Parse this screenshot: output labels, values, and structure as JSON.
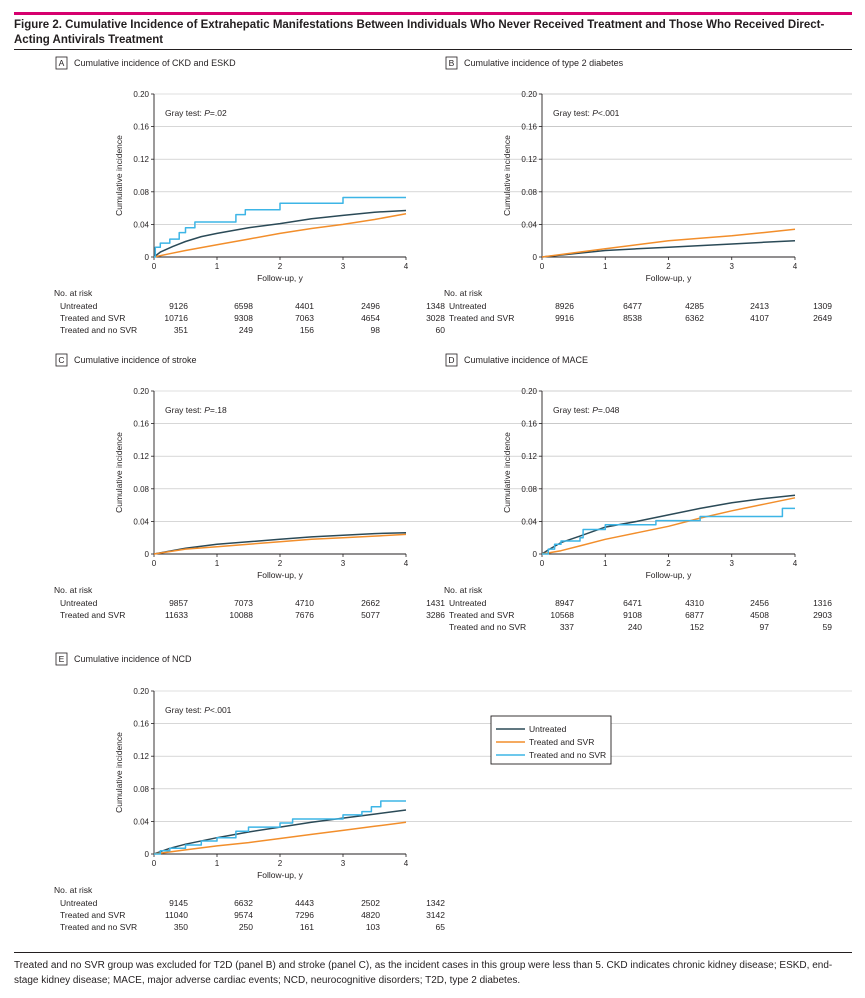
{
  "figure": {
    "title": "Figure 2. Cumulative Incidence of Extrahepatic Manifestations Between Individuals Who Never Received Treatment and Those Who Received Direct-Acting Antivirals Treatment",
    "footnote": "Treated and no SVR group was excluded for T2D (panel B) and stroke (panel C), as the incident cases in this group were less than 5. CKD indicates chronic kidney disease; ESKD, end-stage kidney disease; MACE, major adverse cardiac events; NCD, neurocognitive disorders; T2D, type 2 diabetes."
  },
  "colors": {
    "untreated": "#2b4a57",
    "treated_svr": "#f28e2b",
    "treated_no_svr": "#3db5e6",
    "grid": "#bfbfbf"
  },
  "legend": {
    "entries": [
      "Untreated",
      "Treated and SVR",
      "Treated and no SVR"
    ]
  },
  "chart_data": [
    {
      "type": "line",
      "letter": "A",
      "title": "Cumulative incidence of CKD and ESKD",
      "xlabel": "Follow-up, y",
      "ylabel": "Cumulative incidence",
      "xlim": [
        0,
        4
      ],
      "ylim": [
        0,
        0.2
      ],
      "x_ticks": [
        "0",
        "1",
        "2",
        "3",
        "4"
      ],
      "y_ticks": [
        "0",
        "0.04",
        "0.08",
        "0.12",
        "0.16",
        "0.20"
      ],
      "annotation_pre": "Gray test: ",
      "annotation_p": "P",
      "annotation_post": "=.02",
      "series": [
        {
          "name": "Untreated",
          "color_key": "untreated",
          "step": false,
          "points": [
            [
              0,
              0
            ],
            [
              0.1,
              0.006
            ],
            [
              0.3,
              0.013
            ],
            [
              0.5,
              0.019
            ],
            [
              0.75,
              0.025
            ],
            [
              1,
              0.029
            ],
            [
              1.5,
              0.036
            ],
            [
              2,
              0.041
            ],
            [
              2.5,
              0.047
            ],
            [
              3,
              0.051
            ],
            [
              3.5,
              0.055
            ],
            [
              4,
              0.057
            ]
          ]
        },
        {
          "name": "Treated and SVR",
          "color_key": "treated_svr",
          "step": false,
          "points": [
            [
              0,
              0
            ],
            [
              0.25,
              0.004
            ],
            [
              0.5,
              0.008
            ],
            [
              1,
              0.015
            ],
            [
              1.5,
              0.022
            ],
            [
              2,
              0.029
            ],
            [
              2.5,
              0.035
            ],
            [
              3,
              0.04
            ],
            [
              3.5,
              0.046
            ],
            [
              4,
              0.053
            ]
          ]
        },
        {
          "name": "Treated and no SVR",
          "color_key": "treated_no_svr",
          "step": true,
          "points": [
            [
              0,
              0
            ],
            [
              0.02,
              0.012
            ],
            [
              0.1,
              0.017
            ],
            [
              0.25,
              0.022
            ],
            [
              0.4,
              0.03
            ],
            [
              0.5,
              0.036
            ],
            [
              0.65,
              0.043
            ],
            [
              1.3,
              0.052
            ],
            [
              1.45,
              0.058
            ],
            [
              2,
              0.066
            ],
            [
              3,
              0.073
            ],
            [
              4,
              0.073
            ]
          ]
        }
      ],
      "risk_table": {
        "label": "No. at risk",
        "times": [
          "0",
          "1",
          "2",
          "3",
          "4"
        ],
        "rows": [
          {
            "group": "Untreated",
            "values": [
              "9126",
              "6598",
              "4401",
              "2496",
              "1348"
            ]
          },
          {
            "group": "Treated and SVR",
            "values": [
              "10716",
              "9308",
              "7063",
              "4654",
              "3028"
            ]
          },
          {
            "group": "Treated and no SVR",
            "values": [
              "351",
              "249",
              "156",
              "98",
              "60"
            ]
          }
        ]
      }
    },
    {
      "type": "line",
      "letter": "B",
      "title": "Cumulative incidence of type 2 diabetes",
      "xlabel": "Follow-up, y",
      "ylabel": "Cumulative incidence",
      "xlim": [
        0,
        4
      ],
      "ylim": [
        0,
        0.2
      ],
      "x_ticks": [
        "0",
        "1",
        "2",
        "3",
        "4"
      ],
      "y_ticks": [
        "0",
        "0.04",
        "0.08",
        "0.12",
        "0.16",
        "0.20"
      ],
      "annotation_pre": "Gray test: ",
      "annotation_p": "P",
      "annotation_post": "<.001",
      "series": [
        {
          "name": "Untreated",
          "color_key": "untreated",
          "step": false,
          "points": [
            [
              0,
              0
            ],
            [
              0.5,
              0.004
            ],
            [
              1,
              0.008
            ],
            [
              1.5,
              0.01
            ],
            [
              2,
              0.012
            ],
            [
              2.5,
              0.014
            ],
            [
              3,
              0.016
            ],
            [
              3.5,
              0.018
            ],
            [
              4,
              0.02
            ]
          ]
        },
        {
          "name": "Treated and SVR",
          "color_key": "treated_svr",
          "step": false,
          "points": [
            [
              0,
              0
            ],
            [
              0.5,
              0.005
            ],
            [
              1,
              0.01
            ],
            [
              1.5,
              0.015
            ],
            [
              2,
              0.02
            ],
            [
              2.5,
              0.023
            ],
            [
              3,
              0.026
            ],
            [
              3.5,
              0.03
            ],
            [
              4,
              0.034
            ]
          ]
        }
      ],
      "risk_table": {
        "label": "No. at risk",
        "times": [
          "0",
          "1",
          "2",
          "3",
          "4"
        ],
        "rows": [
          {
            "group": "Untreated",
            "values": [
              "8926",
              "6477",
              "4285",
              "2413",
              "1309"
            ]
          },
          {
            "group": "Treated and SVR",
            "values": [
              "9916",
              "8538",
              "6362",
              "4107",
              "2649"
            ]
          }
        ]
      }
    },
    {
      "type": "line",
      "letter": "C",
      "title": "Cumulative incidence of stroke",
      "xlabel": "Follow-up, y",
      "ylabel": "Cumulative incidence",
      "xlim": [
        0,
        4
      ],
      "ylim": [
        0,
        0.2
      ],
      "x_ticks": [
        "0",
        "1",
        "2",
        "3",
        "4"
      ],
      "y_ticks": [
        "0",
        "0.04",
        "0.08",
        "0.12",
        "0.16",
        "0.20"
      ],
      "annotation_pre": "Gray test: ",
      "annotation_p": "P",
      "annotation_post": "=.18",
      "series": [
        {
          "name": "Untreated",
          "color_key": "untreated",
          "step": false,
          "points": [
            [
              0,
              0
            ],
            [
              0.5,
              0.007
            ],
            [
              1,
              0.012
            ],
            [
              1.5,
              0.015
            ],
            [
              2,
              0.018
            ],
            [
              2.5,
              0.021
            ],
            [
              3,
              0.023
            ],
            [
              3.5,
              0.025
            ],
            [
              4,
              0.026
            ]
          ]
        },
        {
          "name": "Treated and SVR",
          "color_key": "treated_svr",
          "step": false,
          "points": [
            [
              0,
              0
            ],
            [
              0.5,
              0.006
            ],
            [
              1,
              0.009
            ],
            [
              1.5,
              0.012
            ],
            [
              2,
              0.015
            ],
            [
              2.5,
              0.018
            ],
            [
              3,
              0.02
            ],
            [
              3.5,
              0.022
            ],
            [
              4,
              0.024
            ]
          ]
        }
      ],
      "risk_table": {
        "label": "No. at risk",
        "times": [
          "0",
          "1",
          "2",
          "3",
          "4"
        ],
        "rows": [
          {
            "group": "Untreated",
            "values": [
              "9857",
              "7073",
              "4710",
              "2662",
              "1431"
            ]
          },
          {
            "group": "Treated and SVR",
            "values": [
              "11633",
              "10088",
              "7676",
              "5077",
              "3286"
            ]
          }
        ]
      }
    },
    {
      "type": "line",
      "letter": "D",
      "title": "Cumulative incidence of MACE",
      "xlabel": "Follow-up, y",
      "ylabel": "Cumulative incidence",
      "xlim": [
        0,
        4
      ],
      "ylim": [
        0,
        0.2
      ],
      "x_ticks": [
        "0",
        "1",
        "2",
        "3",
        "4"
      ],
      "y_ticks": [
        "0",
        "0.04",
        "0.08",
        "0.12",
        "0.16",
        "0.20"
      ],
      "annotation_pre": "Gray test: ",
      "annotation_p": "P",
      "annotation_post": "=.048",
      "series": [
        {
          "name": "Untreated",
          "color_key": "untreated",
          "step": false,
          "points": [
            [
              0,
              0
            ],
            [
              0.1,
              0.005
            ],
            [
              0.3,
              0.014
            ],
            [
              0.6,
              0.022
            ],
            [
              1,
              0.033
            ],
            [
              1.5,
              0.04
            ],
            [
              2,
              0.048
            ],
            [
              2.5,
              0.056
            ],
            [
              3,
              0.063
            ],
            [
              3.5,
              0.068
            ],
            [
              4,
              0.072
            ]
          ]
        },
        {
          "name": "Treated and SVR",
          "color_key": "treated_svr",
          "step": false,
          "points": [
            [
              0,
              0
            ],
            [
              0.3,
              0.004
            ],
            [
              0.6,
              0.01
            ],
            [
              1,
              0.018
            ],
            [
              1.5,
              0.026
            ],
            [
              2,
              0.034
            ],
            [
              2.5,
              0.044
            ],
            [
              3,
              0.053
            ],
            [
              3.5,
              0.061
            ],
            [
              4,
              0.069
            ]
          ]
        },
        {
          "name": "Treated and no SVR",
          "color_key": "treated_no_svr",
          "step": true,
          "points": [
            [
              0,
              0
            ],
            [
              0.1,
              0.006
            ],
            [
              0.2,
              0.012
            ],
            [
              0.3,
              0.016
            ],
            [
              0.6,
              0.02
            ],
            [
              0.65,
              0.03
            ],
            [
              1,
              0.036
            ],
            [
              1.8,
              0.041
            ],
            [
              2.5,
              0.046
            ],
            [
              3.8,
              0.056
            ],
            [
              4,
              0.056
            ]
          ]
        }
      ],
      "risk_table": {
        "label": "No. at risk",
        "times": [
          "0",
          "1",
          "2",
          "3",
          "4"
        ],
        "rows": [
          {
            "group": "Untreated",
            "values": [
              "8947",
              "6471",
              "4310",
              "2456",
              "1316"
            ]
          },
          {
            "group": "Treated and SVR",
            "values": [
              "10568",
              "9108",
              "6877",
              "4508",
              "2903"
            ]
          },
          {
            "group": "Treated and no SVR",
            "values": [
              "337",
              "240",
              "152",
              "97",
              "59"
            ]
          }
        ]
      }
    },
    {
      "type": "line",
      "letter": "E",
      "title": "Cumulative incidence of NCD",
      "xlabel": "Follow-up, y",
      "ylabel": "Cumulative incidence",
      "xlim": [
        0,
        4
      ],
      "ylim": [
        0,
        0.2
      ],
      "x_ticks": [
        "0",
        "1",
        "2",
        "3",
        "4"
      ],
      "y_ticks": [
        "0",
        "0.04",
        "0.08",
        "0.12",
        "0.16",
        "0.20"
      ],
      "annotation_pre": "Gray test: ",
      "annotation_p": "P",
      "annotation_post": "<.001",
      "series": [
        {
          "name": "Untreated",
          "color_key": "untreated",
          "step": false,
          "points": [
            [
              0,
              0
            ],
            [
              0.25,
              0.007
            ],
            [
              0.5,
              0.012
            ],
            [
              1,
              0.02
            ],
            [
              1.5,
              0.027
            ],
            [
              2,
              0.033
            ],
            [
              2.5,
              0.039
            ],
            [
              3,
              0.044
            ],
            [
              3.5,
              0.049
            ],
            [
              4,
              0.054
            ]
          ]
        },
        {
          "name": "Treated and SVR",
          "color_key": "treated_svr",
          "step": false,
          "points": [
            [
              0,
              0
            ],
            [
              0.5,
              0.005
            ],
            [
              1,
              0.01
            ],
            [
              1.5,
              0.014
            ],
            [
              2,
              0.019
            ],
            [
              2.5,
              0.024
            ],
            [
              3,
              0.029
            ],
            [
              3.5,
              0.034
            ],
            [
              4,
              0.039
            ]
          ]
        },
        {
          "name": "Treated and no SVR",
          "color_key": "treated_no_svr",
          "step": true,
          "points": [
            [
              0,
              0
            ],
            [
              0.1,
              0.004
            ],
            [
              0.25,
              0.007
            ],
            [
              0.5,
              0.011
            ],
            [
              0.75,
              0.016
            ],
            [
              1,
              0.02
            ],
            [
              1.3,
              0.028
            ],
            [
              1.5,
              0.033
            ],
            [
              2,
              0.038
            ],
            [
              2.2,
              0.043
            ],
            [
              3,
              0.048
            ],
            [
              3.3,
              0.052
            ],
            [
              3.45,
              0.058
            ],
            [
              3.6,
              0.065
            ],
            [
              4,
              0.065
            ]
          ]
        }
      ],
      "risk_table": {
        "label": "No. at risk",
        "times": [
          "0",
          "1",
          "2",
          "3",
          "4"
        ],
        "rows": [
          {
            "group": "Untreated",
            "values": [
              "9145",
              "6632",
              "4443",
              "2502",
              "1342"
            ]
          },
          {
            "group": "Treated and SVR",
            "values": [
              "11040",
              "9574",
              "7296",
              "4820",
              "3142"
            ]
          },
          {
            "group": "Treated and no SVR",
            "values": [
              "350",
              "250",
              "161",
              "103",
              "65"
            ]
          }
        ]
      }
    }
  ]
}
